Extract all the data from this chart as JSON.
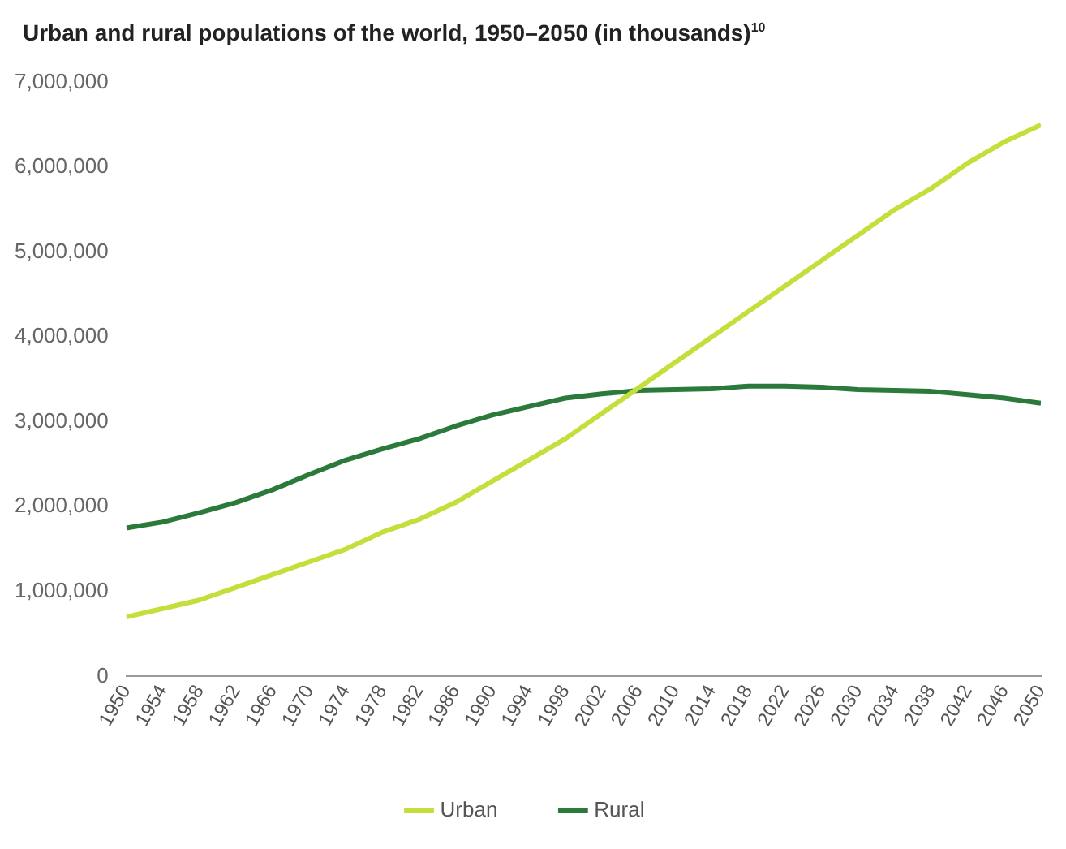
{
  "chart_data": {
    "type": "line",
    "title": "Urban and rural populations of the world, 1950–2050 (in thousands)$^{10}$",
    "x": [
      1950,
      1954,
      1958,
      1962,
      1966,
      1970,
      1974,
      1978,
      1982,
      1986,
      1990,
      1994,
      1998,
      2002,
      2006,
      2010,
      2014,
      2018,
      2022,
      2026,
      2030,
      2034,
      2038,
      2042,
      2046,
      2050
    ],
    "series": [
      {
        "name": "Urban",
        "color": "#c3df3c",
        "values": [
          700000,
          800000,
          900000,
          1050000,
          1200000,
          1350000,
          1500000,
          1700000,
          1850000,
          2050000,
          2300000,
          2550000,
          2800000,
          3100000,
          3400000,
          3700000,
          4000000,
          4300000,
          4600000,
          4900000,
          5200000,
          5500000,
          5750000,
          6050000,
          6300000,
          6500000
        ]
      },
      {
        "name": "Rural",
        "color": "#2b7a3b",
        "values": [
          1750000,
          1820000,
          1930000,
          2050000,
          2200000,
          2380000,
          2550000,
          2680000,
          2800000,
          2950000,
          3080000,
          3180000,
          3280000,
          3330000,
          3370000,
          3380000,
          3390000,
          3420000,
          3420000,
          3410000,
          3380000,
          3370000,
          3360000,
          3320000,
          3280000,
          3220000
        ]
      }
    ],
    "xlim": [
      1950,
      2050
    ],
    "xticks": [
      1950,
      1954,
      1958,
      1962,
      1966,
      1970,
      1974,
      1978,
      1982,
      1986,
      1990,
      1994,
      1998,
      2002,
      2006,
      2010,
      2014,
      2018,
      2022,
      2026,
      2030,
      2034,
      2038,
      2042,
      2046,
      2050
    ],
    "ylim": [
      0,
      7000000
    ],
    "yticks": [
      0,
      {
        "value": 1000000,
        "label": "1,000,000"
      },
      {
        "value": 2000000,
        "label": "2,000,000"
      },
      {
        "value": 3000000,
        "label": "3,000,000"
      },
      {
        "value": 4000000,
        "label": "4,000,000"
      },
      {
        "value": 5000000,
        "label": "5,000,000"
      },
      {
        "value": 6000000,
        "label": "6,000,000"
      },
      {
        "value": 7000000,
        "label": "7,000,000"
      }
    ],
    "grid": false,
    "legend": "bottom",
    "marker": "none",
    "line_style": "solid"
  }
}
